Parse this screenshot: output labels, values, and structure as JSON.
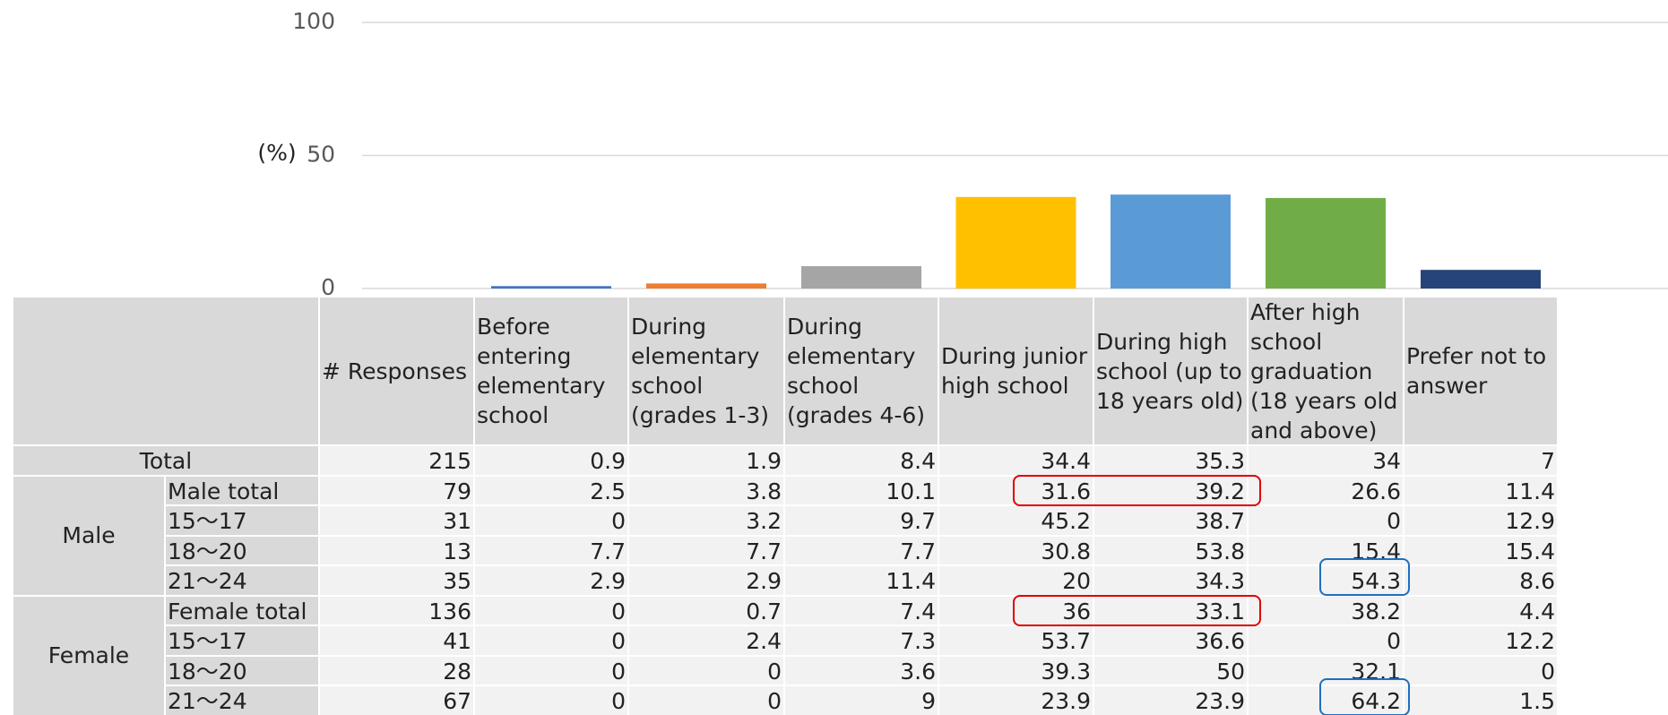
{
  "chart_data": {
    "type": "bar",
    "y_label": "(%)",
    "categories": [
      "Before entering elementary school",
      "During elementary school (grades 1-3)",
      "During elementary school (grades 4-6)",
      "During junior high school",
      "During high school (up to 18 years old)",
      "After high school graduation (18 years old and above)",
      "Prefer not to answer"
    ],
    "values": [
      0.9,
      1.9,
      8.4,
      34.4,
      35.3,
      34,
      7
    ],
    "colors": [
      "#4472c4",
      "#ed7d31",
      "#a5a5a5",
      "#ffc000",
      "#5b9bd5",
      "#70ad47",
      "#264478"
    ],
    "ylim": [
      0,
      100
    ],
    "yticks": [
      0,
      50,
      100
    ],
    "grid": true
  },
  "table": {
    "responses_header": "# Responses",
    "total": {
      "label": "Total",
      "responses": 215
    },
    "groups": [
      {
        "name": "Male",
        "rows": [
          {
            "label": "Male total",
            "responses": 79,
            "values": [
              2.5,
              3.8,
              10.1,
              31.6,
              39.2,
              26.6,
              11.4
            ]
          },
          {
            "label": "15～17",
            "responses": 31,
            "values": [
              0,
              3.2,
              9.7,
              45.2,
              38.7,
              0,
              12.9
            ]
          },
          {
            "label": "18～20",
            "responses": 13,
            "values": [
              7.7,
              7.7,
              7.7,
              30.8,
              53.8,
              15.4,
              15.4
            ]
          },
          {
            "label": "21～24",
            "responses": 35,
            "values": [
              2.9,
              2.9,
              11.4,
              20,
              34.3,
              54.3,
              8.6
            ]
          }
        ]
      },
      {
        "name": "Female",
        "rows": [
          {
            "label": "Female total",
            "responses": 136,
            "values": [
              0,
              0.7,
              7.4,
              36,
              33.1,
              38.2,
              4.4
            ]
          },
          {
            "label": "15～17",
            "responses": 41,
            "values": [
              0,
              2.4,
              7.3,
              53.7,
              36.6,
              0,
              12.2
            ]
          },
          {
            "label": "18～20",
            "responses": 28,
            "values": [
              0,
              0,
              3.6,
              39.3,
              50,
              32.1,
              0
            ]
          },
          {
            "label": "21～24",
            "responses": 67,
            "values": [
              0,
              0,
              9,
              23.9,
              23.9,
              64.2,
              1.5
            ]
          }
        ]
      }
    ]
  }
}
